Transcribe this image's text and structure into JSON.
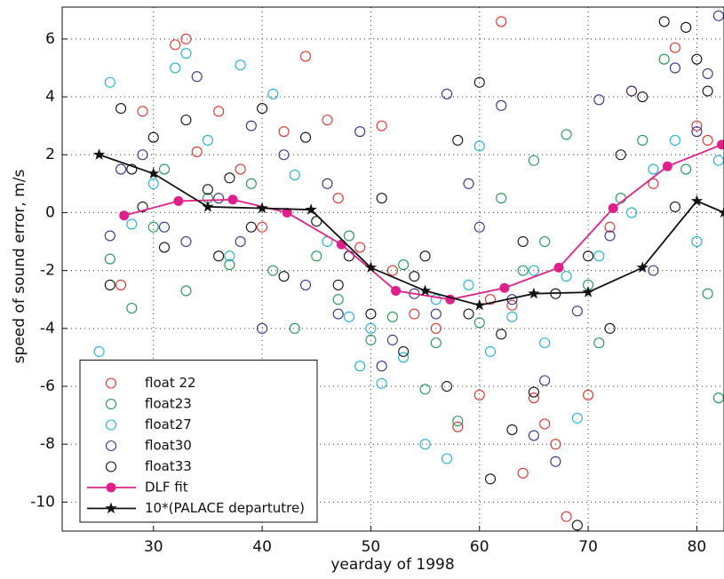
{
  "chart_data": {
    "type": "scatter",
    "x_label": "yearday of 1998",
    "y_label": "speed of sound error, m/s",
    "xlim": [
      21.6,
      82.5
    ],
    "ylim": [
      -11,
      7.1
    ],
    "xticks": [
      30,
      40,
      50,
      60,
      70,
      80
    ],
    "yticks": [
      -10,
      -8,
      -6,
      -4,
      -2,
      0,
      2,
      4,
      6
    ],
    "grid": true,
    "legend": "lower left",
    "series": [
      {
        "name": "float 22",
        "color": "#e0302a",
        "marker": "circle",
        "x": [
          27,
          29,
          32,
          33,
          34,
          36,
          38,
          40,
          42,
          44,
          46,
          47,
          49,
          51,
          52,
          54,
          56,
          58,
          60,
          61,
          62,
          63,
          64,
          65,
          66,
          67,
          68,
          70,
          72,
          74,
          76,
          78,
          80,
          81
        ],
        "values": [
          -2.5,
          3.5,
          5.8,
          6.0,
          2.1,
          3.5,
          1.5,
          -0.5,
          2.8,
          5.4,
          3.2,
          0.5,
          -1.2,
          3.0,
          -2.0,
          -3.5,
          -4.0,
          -7.4,
          -6.3,
          -3.0,
          6.6,
          -3.2,
          -9.0,
          -6.4,
          -7.3,
          -8.0,
          -10.5,
          -6.3,
          -0.5,
          4.2,
          1.0,
          5.7,
          3.0,
          2.5
        ]
      },
      {
        "name": "float23",
        "color": "#1a9a50",
        "marker": "circle",
        "x": [
          26,
          28,
          30,
          31,
          33,
          35,
          37,
          39,
          41,
          43,
          45,
          47,
          48,
          50,
          52,
          53,
          55,
          56,
          58,
          60,
          62,
          64,
          65,
          66,
          68,
          70,
          71,
          73,
          75,
          77,
          79,
          81,
          82
        ],
        "values": [
          -1.6,
          -3.3,
          -0.5,
          1.5,
          -2.7,
          0.5,
          -1.8,
          1.0,
          -2.0,
          -4.0,
          -1.5,
          -3.0,
          -0.8,
          -4.4,
          -3.6,
          -1.8,
          -6.1,
          -4.5,
          -7.2,
          -3.8,
          0.5,
          -2.0,
          1.8,
          -1.0,
          2.7,
          -2.5,
          -4.5,
          0.5,
          2.5,
          5.3,
          1.5,
          -2.8,
          -6.4
        ]
      },
      {
        "name": "float27",
        "color": "#1ab0d8",
        "marker": "circle",
        "x": [
          25,
          26,
          28,
          30,
          32,
          33,
          35,
          37,
          38,
          41,
          43,
          46,
          48,
          49,
          50,
          51,
          53,
          55,
          56,
          57,
          59,
          60,
          61,
          63,
          65,
          66,
          68,
          69,
          71,
          74,
          76,
          78,
          80,
          82
        ],
        "values": [
          -4.8,
          4.5,
          -0.4,
          1.0,
          5.0,
          5.5,
          2.5,
          -1.5,
          5.1,
          4.1,
          1.3,
          -1.0,
          -3.6,
          -5.3,
          -4.0,
          -5.9,
          -5.0,
          -8.0,
          -3.0,
          -8.5,
          -2.5,
          2.3,
          -4.8,
          -3.6,
          -2.0,
          -4.5,
          -2.2,
          -7.1,
          -1.5,
          0.0,
          1.5,
          2.5,
          -1.0,
          1.8
        ]
      },
      {
        "name": "float30",
        "color": "#303090",
        "marker": "circle",
        "x": [
          26,
          27,
          29,
          31,
          33,
          34,
          36,
          38,
          39,
          40,
          42,
          44,
          46,
          47,
          49,
          51,
          52,
          54,
          56,
          57,
          59,
          60,
          62,
          63,
          65,
          66,
          67,
          69,
          71,
          72,
          74,
          76,
          78,
          80,
          81,
          82
        ],
        "values": [
          -0.8,
          1.5,
          2.0,
          -0.5,
          -1.0,
          4.7,
          0.5,
          -1.0,
          3.0,
          -4.0,
          2.0,
          -2.5,
          1.0,
          -3.5,
          2.8,
          -5.3,
          -4.4,
          -2.8,
          -3.5,
          4.1,
          1.0,
          -0.5,
          3.7,
          -3.0,
          -7.7,
          -5.8,
          -8.6,
          -3.4,
          3.9,
          -0.8,
          4.2,
          -2.0,
          5.0,
          2.8,
          4.8,
          6.8
        ]
      },
      {
        "name": "float33",
        "color": "#111111",
        "marker": "circle",
        "x": [
          26,
          27,
          28,
          29,
          30,
          31,
          33,
          35,
          36,
          37,
          39,
          40,
          42,
          44,
          45,
          47,
          48,
          50,
          51,
          53,
          54,
          55,
          57,
          58,
          59,
          60,
          61,
          62,
          63,
          64,
          65,
          67,
          69,
          70,
          72,
          73,
          75,
          77,
          78,
          79,
          80,
          81
        ],
        "values": [
          -2.5,
          3.6,
          1.5,
          0.2,
          2.6,
          -1.2,
          3.2,
          0.8,
          -1.5,
          1.2,
          -0.5,
          3.6,
          -2.2,
          2.6,
          -0.3,
          -2.5,
          -1.5,
          -3.5,
          0.5,
          -4.8,
          -2.2,
          -1.5,
          -6.0,
          2.5,
          -3.5,
          4.5,
          -9.2,
          -4.2,
          -7.5,
          -1.0,
          -6.2,
          -2.8,
          -10.8,
          -1.5,
          -4.0,
          2.0,
          4.0,
          6.6,
          0.2,
          6.4,
          5.3,
          4.2
        ]
      },
      {
        "name": "DLF fit",
        "color": "#e0208a",
        "marker": "line-dot",
        "x": [
          27.3,
          32.3,
          37.3,
          42.3,
          47.3,
          52.3,
          57.3,
          62.3,
          67.3,
          72.3,
          77.3,
          82.3
        ],
        "values": [
          -0.1,
          0.4,
          0.45,
          0,
          -1.1,
          -2.7,
          -3.0,
          -2.6,
          -1.9,
          0.15,
          1.6,
          2.35
        ]
      },
      {
        "name": "10*(PALACE departutre)",
        "color": "#111111",
        "marker": "line-star",
        "x": [
          25,
          30,
          35,
          40,
          44.5,
          50,
          55,
          60,
          65,
          70,
          75,
          80,
          82.5
        ],
        "values": [
          2.0,
          1.35,
          0.2,
          0.15,
          0.1,
          -1.9,
          -2.7,
          -3.2,
          -2.8,
          -2.75,
          -1.9,
          0.4,
          0
        ]
      }
    ]
  }
}
